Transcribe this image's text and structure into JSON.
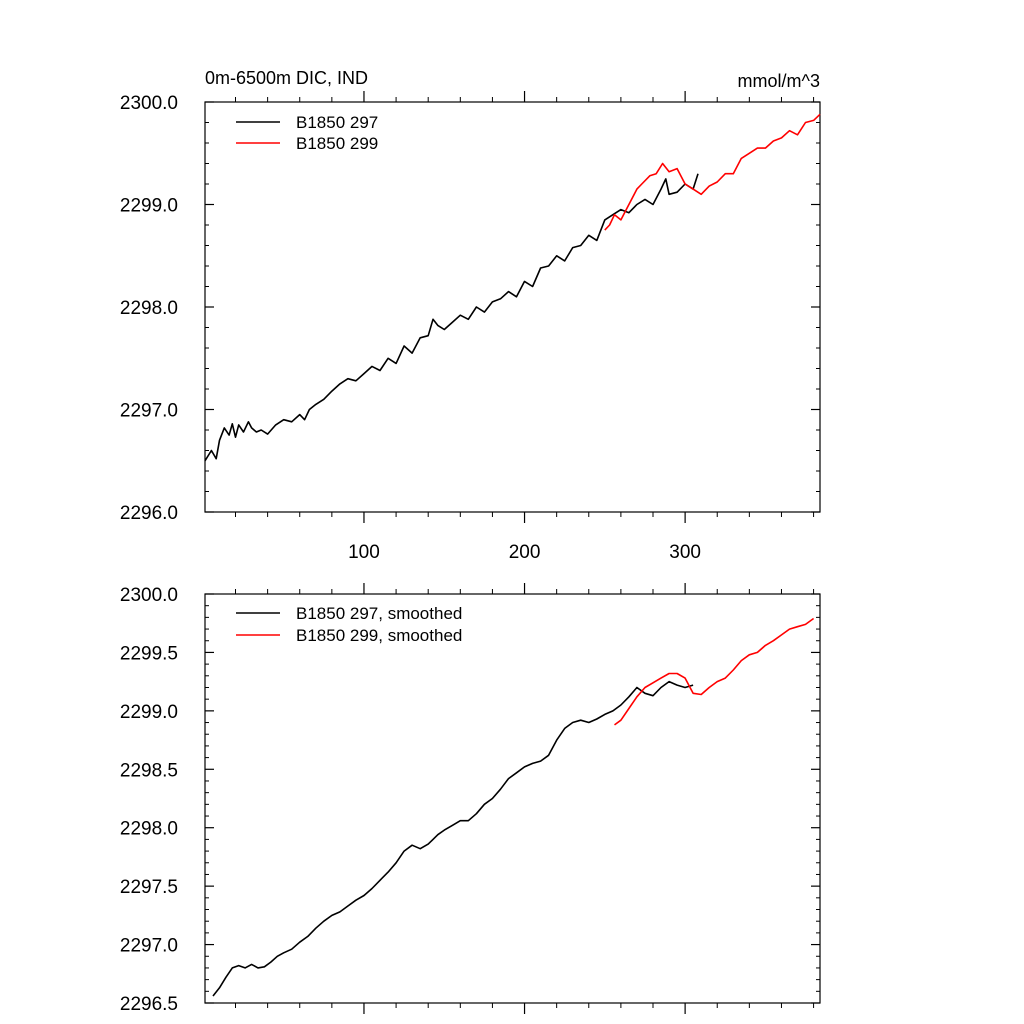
{
  "chart_data": [
    {
      "type": "line",
      "title_left": "0m-6500m DIC, IND",
      "title_right": "mmol/m^3",
      "xlim": [
        1,
        384
      ],
      "ylim": [
        2296.0,
        2300.0
      ],
      "x_ticks": [
        100,
        200,
        300
      ],
      "x_tick_labels": [
        "100",
        "200",
        "300"
      ],
      "y_ticks": [
        2296.0,
        2297.0,
        2298.0,
        2299.0,
        2300.0
      ],
      "y_tick_labels": [
        "2296.0",
        "2297.0",
        "2298.0",
        "2299.0",
        "2300.0"
      ],
      "legend": [
        "B1850 297",
        "B1850 299"
      ],
      "series": [
        {
          "name": "B1850 297",
          "color": "#000000",
          "x": [
            1,
            5,
            8,
            10,
            13,
            16,
            18,
            20,
            22,
            25,
            28,
            30,
            33,
            36,
            40,
            45,
            50,
            55,
            60,
            63,
            66,
            70,
            75,
            80,
            85,
            90,
            95,
            100,
            105,
            110,
            115,
            120,
            125,
            130,
            135,
            140,
            143,
            146,
            150,
            155,
            160,
            165,
            170,
            175,
            180,
            185,
            190,
            195,
            200,
            205,
            210,
            215,
            220,
            225,
            230,
            235,
            240,
            245,
            250,
            255,
            260,
            265,
            270,
            275,
            280,
            285,
            288,
            290,
            295,
            300,
            305,
            308
          ],
          "values": [
            2296.5,
            2296.6,
            2296.52,
            2296.7,
            2296.82,
            2296.75,
            2296.86,
            2296.73,
            2296.85,
            2296.78,
            2296.88,
            2296.82,
            2296.78,
            2296.8,
            2296.76,
            2296.85,
            2296.9,
            2296.88,
            2296.95,
            2296.9,
            2297.0,
            2297.05,
            2297.1,
            2297.18,
            2297.25,
            2297.3,
            2297.28,
            2297.35,
            2297.42,
            2297.38,
            2297.5,
            2297.45,
            2297.62,
            2297.55,
            2297.7,
            2297.72,
            2297.88,
            2297.82,
            2297.78,
            2297.85,
            2297.92,
            2297.88,
            2298.0,
            2297.95,
            2298.05,
            2298.08,
            2298.15,
            2298.1,
            2298.25,
            2298.2,
            2298.38,
            2298.4,
            2298.5,
            2298.45,
            2298.58,
            2298.6,
            2298.7,
            2298.65,
            2298.85,
            2298.9,
            2298.95,
            2298.92,
            2299.0,
            2299.05,
            2299.0,
            2299.15,
            2299.25,
            2299.1,
            2299.12,
            2299.2,
            2299.15,
            2299.3
          ]
        },
        {
          "name": "B1850 299",
          "color": "#ff0000",
          "x": [
            250,
            253,
            256,
            260,
            265,
            270,
            273,
            278,
            282,
            286,
            290,
            295,
            300,
            305,
            310,
            315,
            320,
            325,
            330,
            335,
            340,
            345,
            350,
            355,
            360,
            365,
            370,
            375,
            380,
            384
          ],
          "values": [
            2298.75,
            2298.8,
            2298.9,
            2298.85,
            2299.0,
            2299.15,
            2299.2,
            2299.28,
            2299.3,
            2299.4,
            2299.32,
            2299.35,
            2299.2,
            2299.15,
            2299.1,
            2299.18,
            2299.22,
            2299.3,
            2299.3,
            2299.45,
            2299.5,
            2299.55,
            2299.55,
            2299.62,
            2299.65,
            2299.72,
            2299.68,
            2299.8,
            2299.82,
            2299.88
          ]
        }
      ]
    },
    {
      "type": "line",
      "xlim": [
        1,
        384
      ],
      "ylim": [
        2296.5,
        2300.0
      ],
      "x_ticks": [
        100,
        200,
        300
      ],
      "y_ticks": [
        2296.5,
        2297.0,
        2297.5,
        2298.0,
        2298.5,
        2299.0,
        2299.5,
        2300.0
      ],
      "y_tick_labels": [
        "2296.5",
        "2297.0",
        "2297.5",
        "2298.0",
        "2298.5",
        "2299.0",
        "2299.5",
        "2300.0"
      ],
      "legend": [
        "B1850 297, smoothed",
        "B1850 299, smoothed"
      ],
      "series": [
        {
          "name": "B1850 297, smoothed",
          "color": "#000000",
          "x": [
            6,
            10,
            14,
            18,
            22,
            26,
            30,
            34,
            38,
            42,
            46,
            50,
            55,
            60,
            65,
            70,
            75,
            80,
            85,
            90,
            95,
            100,
            105,
            110,
            115,
            120,
            125,
            130,
            135,
            140,
            143,
            146,
            150,
            155,
            160,
            165,
            170,
            175,
            180,
            185,
            190,
            195,
            200,
            205,
            210,
            215,
            220,
            225,
            230,
            235,
            240,
            245,
            250,
            255,
            260,
            265,
            270,
            275,
            280,
            285,
            290,
            295,
            300,
            305
          ],
          "values": [
            2296.56,
            2296.63,
            2296.72,
            2296.8,
            2296.82,
            2296.8,
            2296.83,
            2296.8,
            2296.81,
            2296.85,
            2296.9,
            2296.93,
            2296.96,
            2297.02,
            2297.07,
            2297.14,
            2297.2,
            2297.25,
            2297.28,
            2297.33,
            2297.38,
            2297.42,
            2297.48,
            2297.55,
            2297.62,
            2297.7,
            2297.8,
            2297.85,
            2297.82,
            2297.86,
            2297.9,
            2297.94,
            2297.98,
            2298.02,
            2298.06,
            2298.06,
            2298.12,
            2298.2,
            2298.25,
            2298.33,
            2298.42,
            2298.47,
            2298.52,
            2298.55,
            2298.57,
            2298.62,
            2298.75,
            2298.85,
            2298.9,
            2298.92,
            2298.9,
            2298.93,
            2298.97,
            2299.0,
            2299.05,
            2299.12,
            2299.2,
            2299.15,
            2299.13,
            2299.2,
            2299.25,
            2299.22,
            2299.2,
            2299.22
          ]
        },
        {
          "name": "B1850 299, smoothed",
          "color": "#ff0000",
          "x": [
            256,
            260,
            265,
            270,
            275,
            280,
            285,
            290,
            295,
            300,
            305,
            310,
            315,
            320,
            325,
            330,
            335,
            340,
            345,
            350,
            355,
            360,
            365,
            370,
            375,
            380
          ],
          "values": [
            2298.88,
            2298.92,
            2299.02,
            2299.12,
            2299.2,
            2299.24,
            2299.28,
            2299.32,
            2299.32,
            2299.28,
            2299.15,
            2299.14,
            2299.2,
            2299.25,
            2299.28,
            2299.35,
            2299.43,
            2299.48,
            2299.5,
            2299.56,
            2299.6,
            2299.65,
            2299.7,
            2299.72,
            2299.74,
            2299.79
          ]
        }
      ]
    }
  ]
}
